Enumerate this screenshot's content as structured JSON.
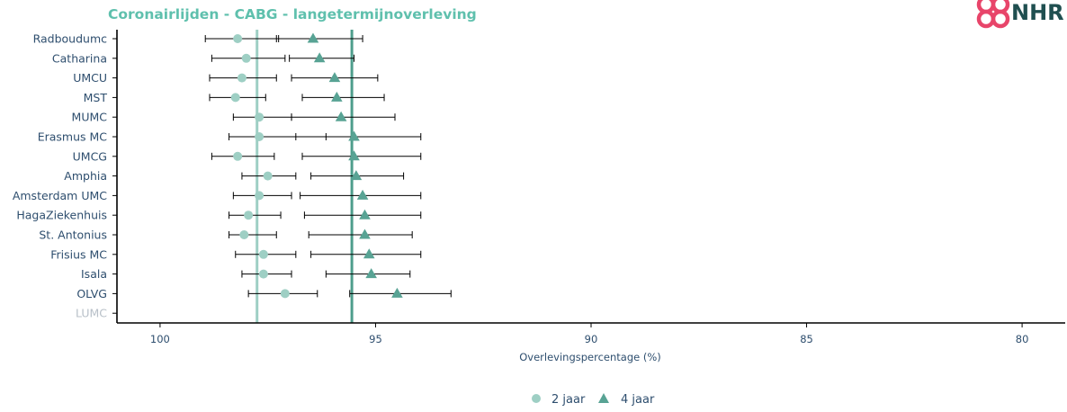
{
  "chart_data": {
    "type": "scatter",
    "title": "Coronairlijden - CABG - langetermijnoverleving",
    "xlabel": "Overlevingspercentage (%)",
    "ylabel": "",
    "xlim": [
      101,
      79
    ],
    "x_reversed": true,
    "xticks": [
      100,
      95,
      90,
      85,
      80
    ],
    "categories": [
      "Radboudumc",
      "Catharina",
      "UMCU",
      "MST",
      "MUMC",
      "Erasmus MC",
      "UMCG",
      "Amphia",
      "Amsterdam UMC",
      "HagaZiekenhuis",
      "St. Antonius",
      "Frisius MC",
      "Isala",
      "OLVG",
      "LUMC"
    ],
    "categories_muted": [
      "LUMC"
    ],
    "series": [
      {
        "name": "2 jaar",
        "marker": "circle",
        "color": "#9ecfc4",
        "values": [
          98.2,
          98.0,
          98.1,
          98.25,
          97.7,
          97.7,
          98.2,
          97.5,
          97.7,
          97.95,
          98.05,
          97.6,
          97.6,
          97.1,
          null
        ],
        "ci_low": [
          97.25,
          97.1,
          97.3,
          97.55,
          96.95,
          96.15,
          97.35,
          96.85,
          96.95,
          97.2,
          97.3,
          96.85,
          96.95,
          96.35,
          null
        ],
        "ci_high": [
          98.95,
          98.8,
          98.85,
          98.85,
          98.3,
          98.4,
          98.8,
          98.1,
          98.3,
          98.4,
          98.4,
          98.25,
          98.1,
          97.95,
          null
        ]
      },
      {
        "name": "4 jaar",
        "marker": "triangle",
        "color": "#58a394",
        "values": [
          96.45,
          96.3,
          95.95,
          95.9,
          95.8,
          95.5,
          95.5,
          95.45,
          95.3,
          95.25,
          95.25,
          95.15,
          95.1,
          94.5,
          null
        ],
        "ci_low": [
          95.3,
          95.5,
          94.95,
          94.8,
          94.55,
          93.95,
          93.95,
          94.35,
          93.95,
          93.95,
          94.15,
          93.95,
          94.2,
          93.25,
          null
        ],
        "ci_high": [
          97.3,
          97.0,
          96.95,
          96.7,
          96.95,
          96.85,
          96.7,
          96.5,
          96.75,
          96.65,
          96.55,
          96.5,
          96.15,
          95.6,
          null
        ]
      }
    ],
    "reference_lines": [
      {
        "series": "2 jaar",
        "value": 97.75,
        "color": "#9ecfc4"
      },
      {
        "series": "4 jaar",
        "value": 95.55,
        "color": "#4e9e8c"
      }
    ],
    "legend": {
      "position": "bottom",
      "items": [
        "2 jaar",
        "4 jaar"
      ]
    },
    "grid": false
  },
  "logo": {
    "text": "NHR"
  },
  "colors": {
    "title": "#5fc0ad",
    "labels": "#2e4e6e",
    "muted_label": "#b8c0c8",
    "axis": "#000000",
    "logo_icon": "#e8456a",
    "logo_text": "#1f4f50"
  }
}
